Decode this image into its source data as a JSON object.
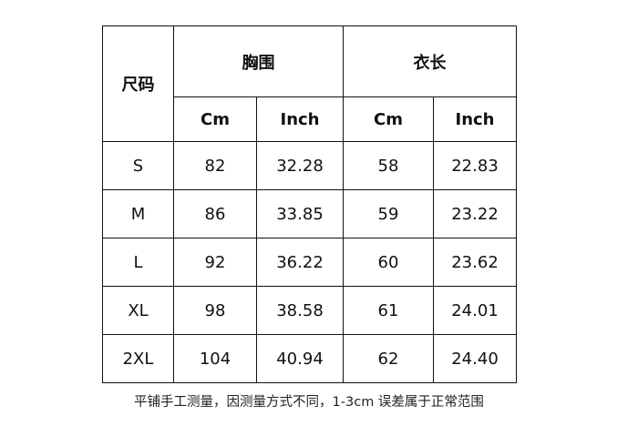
{
  "table": {
    "size_label": "尺码",
    "groups": [
      "胸围",
      "衣长"
    ],
    "units": [
      "Cm",
      "Inch",
      "Cm",
      "Inch"
    ],
    "rows": [
      [
        "S",
        "82",
        "32.28",
        "58",
        "22.83"
      ],
      [
        "M",
        "86",
        "33.85",
        "59",
        "23.22"
      ],
      [
        "L",
        "92",
        "36.22",
        "60",
        "23.62"
      ],
      [
        "XL",
        "98",
        "38.58",
        "61",
        "24.01"
      ],
      [
        "2XL",
        "104",
        "40.94",
        "62",
        "24.40"
      ]
    ]
  },
  "note": "平铺手工测量，因测量方式不同，1-3cm 误差属于正常范围"
}
